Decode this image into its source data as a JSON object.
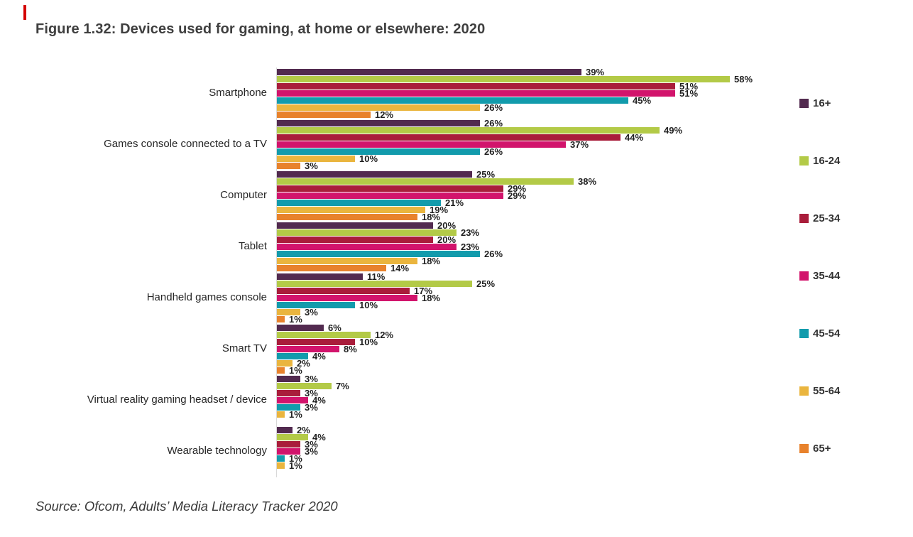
{
  "figure": {
    "title": "Figure 1.32: Devices used for gaming, at home or elsewhere: 2020",
    "source": "Source: Ofcom, Adults’ Media Literacy Tracker 2020",
    "marker_color": "#d40000",
    "title_color": "#3f3f3f"
  },
  "chart_data": {
    "type": "bar",
    "orientation": "horizontal",
    "title": "Figure 1.32: Devices used for gaming, at home or elsewhere: 2020",
    "source": "Source: Ofcom, Adults’ Media Literacy Tracker 2020",
    "value_suffix": "%",
    "xlim": [
      0,
      60
    ],
    "grid": false,
    "legend_position": "right",
    "axis_color": "#d9d9d9",
    "categories": [
      "Smartphone",
      "Games console connected to a TV",
      "Computer",
      "Tablet",
      "Handheld games console",
      "Smart TV",
      "Virtual reality gaming headset / device",
      "Wearable technology"
    ],
    "series": [
      {
        "name": "16+",
        "color": "#522a4f",
        "values": [
          39,
          26,
          25,
          20,
          11,
          6,
          3,
          2
        ]
      },
      {
        "name": "16-24",
        "color": "#b3ca47",
        "values": [
          58,
          49,
          38,
          23,
          25,
          12,
          7,
          4
        ]
      },
      {
        "name": "25-34",
        "color": "#a91d3b",
        "values": [
          51,
          44,
          29,
          20,
          17,
          10,
          3,
          3
        ]
      },
      {
        "name": "35-44",
        "color": "#d2146c",
        "values": [
          51,
          37,
          29,
          23,
          18,
          8,
          4,
          3
        ]
      },
      {
        "name": "45-54",
        "color": "#129bac",
        "values": [
          45,
          26,
          21,
          26,
          10,
          4,
          3,
          1
        ]
      },
      {
        "name": "55-64",
        "color": "#eab53e",
        "values": [
          26,
          10,
          19,
          18,
          3,
          2,
          1,
          1
        ]
      },
      {
        "name": "65+",
        "color": "#e8822c",
        "values": [
          12,
          3,
          18,
          14,
          1,
          1,
          null,
          null
        ]
      }
    ]
  }
}
